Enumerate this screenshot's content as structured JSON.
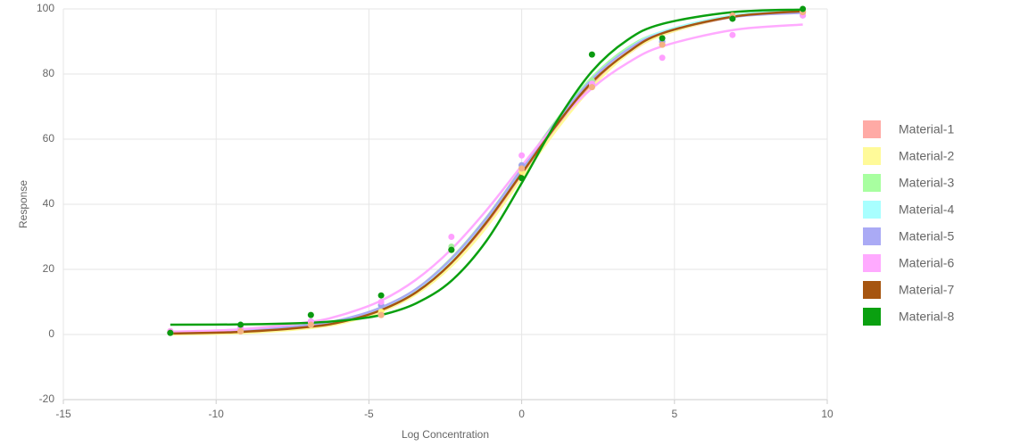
{
  "chart_data": {
    "type": "dose-response",
    "x_label": "Log Concentration",
    "y_label": "Response",
    "xlim": [
      -15,
      10
    ],
    "xticks": [
      -15,
      -10,
      -5,
      0,
      5,
      10
    ],
    "ylim": [
      -20,
      100
    ],
    "yticks": [
      -20,
      0,
      20,
      40,
      60,
      80,
      100
    ],
    "grid": true,
    "legend": "right",
    "x": [
      -11.5,
      -9.2,
      -6.9,
      -4.6,
      -2.3,
      0,
      2.3,
      4.6,
      6.9,
      9.2
    ],
    "fit_x": [
      -11.5,
      -9.2,
      -6.9,
      -5.75,
      -4.6,
      -3.45,
      -2.3,
      -1.15,
      0,
      1.15,
      2.3,
      3.45,
      4.6,
      6.9,
      9.2
    ],
    "series": [
      {
        "name": "Material-1",
        "color": "#ffaaa5",
        "point_color": "#f4b183",
        "values": [
          1,
          1,
          3,
          6,
          26,
          51,
          76,
          89,
          98,
          99
        ],
        "fit": [
          0.3,
          0.8,
          2.5,
          4.3,
          7.6,
          13,
          22,
          34,
          49,
          64,
          77,
          86,
          92,
          97.5,
          99.2
        ]
      },
      {
        "name": "Material-2",
        "color": "#fffa99",
        "point_color": "#fff07a",
        "values": [
          0.5,
          1,
          3,
          7,
          26,
          50,
          76,
          90,
          97,
          99
        ],
        "fit": [
          0,
          0.4,
          2,
          3.8,
          7,
          12.4,
          21,
          33,
          48,
          63,
          76,
          86,
          92,
          97.6,
          99.3
        ]
      },
      {
        "name": "Material-3",
        "color": "#a8ffa0",
        "point_color": "#a8f0a0",
        "values": [
          0.5,
          2,
          4,
          9,
          27,
          52,
          78,
          90,
          97,
          99
        ],
        "fit": [
          0.4,
          1,
          2.9,
          4.8,
          8.3,
          14,
          23.5,
          36,
          51,
          66,
          79,
          88,
          93,
          98,
          99.4
        ]
      },
      {
        "name": "Material-4",
        "color": "#a8ffff",
        "point_color": "#a0f0f0",
        "values": [
          0.5,
          2,
          4,
          9,
          26,
          51,
          77,
          90,
          97,
          99
        ],
        "fit": [
          0.3,
          0.9,
          2.7,
          4.6,
          8,
          13.6,
          23,
          35.5,
          50.5,
          65.5,
          78.5,
          87.5,
          93,
          98,
          99.4
        ]
      },
      {
        "name": "Material-5",
        "color": "#aaaaf5",
        "point_color": "#a0a0ee",
        "values": [
          0.5,
          2,
          4,
          9,
          26,
          52,
          77,
          90,
          97,
          98
        ],
        "fit": [
          0.6,
          1.2,
          3,
          4.9,
          8.3,
          14,
          23.3,
          35.8,
          50.8,
          65.6,
          78.4,
          87.4,
          92.6,
          97.5,
          98.8
        ]
      },
      {
        "name": "Material-6",
        "color": "#ffaaff",
        "point_color": "#ff9fff",
        "values": [
          1,
          2,
          4,
          10,
          30,
          55,
          77,
          85,
          92,
          98
        ],
        "fit": [
          0.85,
          1.6,
          3.9,
          6.4,
          10.4,
          16.9,
          26.2,
          38.2,
          51.8,
          64.9,
          75.6,
          83.3,
          88.5,
          93.5,
          95.2
        ]
      },
      {
        "name": "Material-7",
        "color": "#a65510",
        "point_color": "#f4b183",
        "values": [
          0.5,
          1,
          3,
          6,
          26,
          51,
          76,
          89,
          97,
          99
        ],
        "fit": [
          0.3,
          0.8,
          2.4,
          4.2,
          7.5,
          13,
          22,
          34.5,
          49.5,
          64.5,
          77.5,
          86.5,
          92.5,
          97.6,
          99.3
        ]
      },
      {
        "name": "Material-8",
        "color": "#0aa010",
        "point_color": "#0a9a10",
        "values": [
          0.5,
          3,
          6,
          12,
          26,
          48,
          86,
          91,
          97,
          100
        ],
        "fit": [
          3,
          3.1,
          3.6,
          4.4,
          6,
          9.6,
          16.5,
          28.8,
          46.5,
          65.5,
          80.8,
          90.4,
          95.4,
          99,
          99.8
        ]
      }
    ]
  }
}
